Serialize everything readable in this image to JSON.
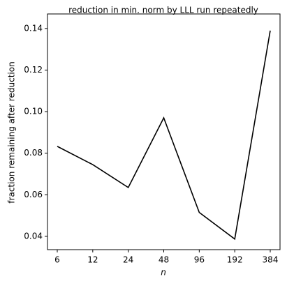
{
  "chart_data": {
    "type": "line",
    "title": "reduction in min. norm by LLL run repeatedly",
    "x_label": "n",
    "y_label": "fraction remaining after reduction",
    "categories": [
      "6",
      "12",
      "24",
      "48",
      "96",
      "192",
      "384"
    ],
    "series": [
      {
        "color": "#000000",
        "values": [
          0.0833,
          0.0745,
          0.0635,
          0.097,
          0.0515,
          0.0387,
          0.139
        ]
      }
    ],
    "ylim": [
      0.0336,
      0.147
    ],
    "yticks": [
      0.04,
      0.06,
      0.08,
      {
        "value": 0.1,
        "label": "0.10"
      },
      0.12,
      0.14
    ],
    "grid": false
  }
}
